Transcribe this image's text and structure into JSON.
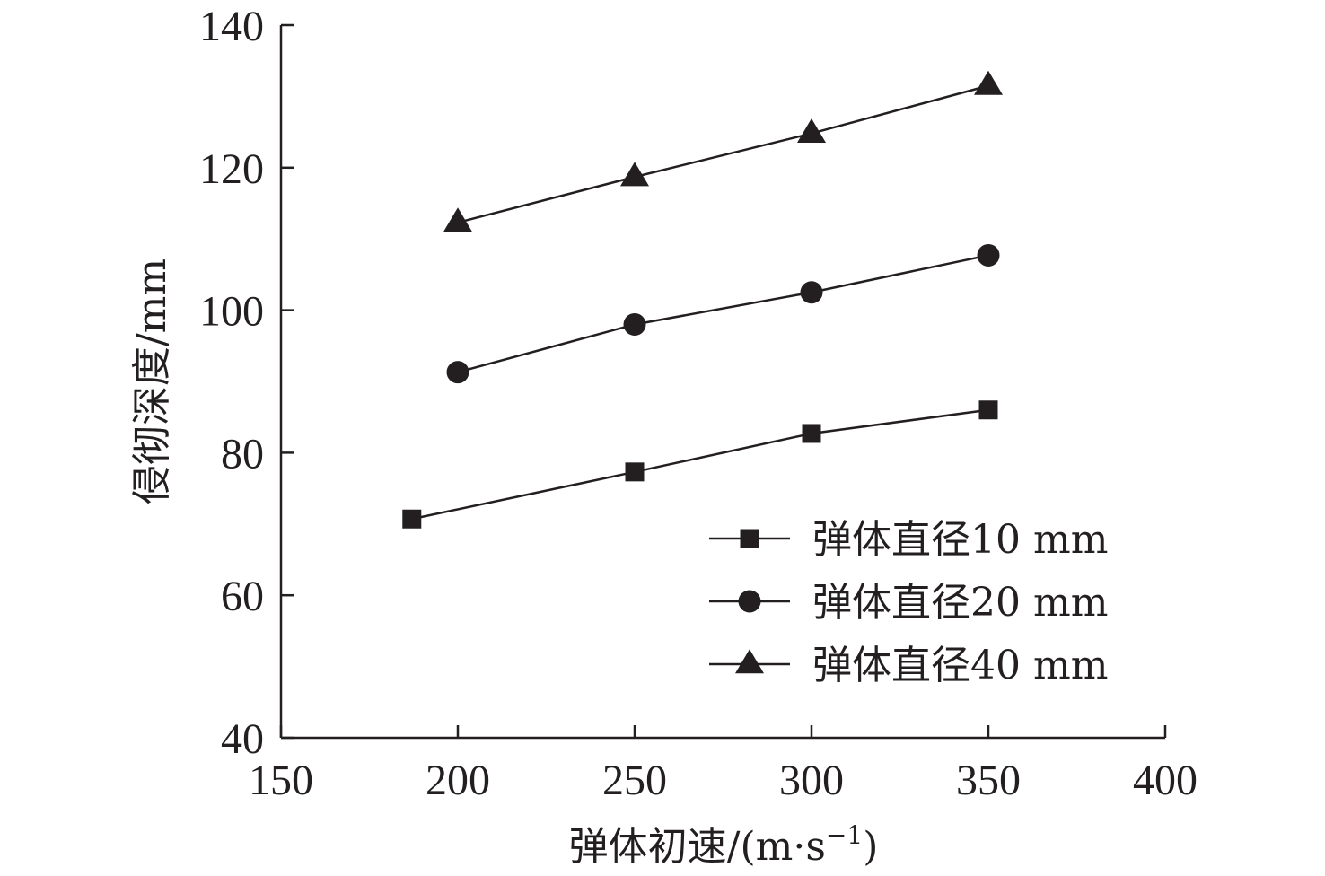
{
  "chart_data": {
    "type": "line",
    "title": "",
    "xlabel": "弹体初速/(m·s",
    "xlabel_sup": "−1",
    "xlabel_close": ")",
    "ylabel": "侵彻深度/mm",
    "xlim": [
      150,
      400
    ],
    "ylim": [
      40,
      140
    ],
    "x_ticks": [
      150,
      200,
      250,
      300,
      350,
      400
    ],
    "y_ticks": [
      40,
      60,
      80,
      100,
      120,
      140
    ],
    "grid": false,
    "legend_position": "bottom-right",
    "colors": {
      "line": "#231f20",
      "marker": "#231f20",
      "axis": "#231f20"
    },
    "series": [
      {
        "name": "弹体直径10 mm",
        "marker": "square",
        "x": [
          187,
          250,
          300,
          350
        ],
        "values": [
          70.7,
          77.3,
          82.7,
          86.0
        ]
      },
      {
        "name": "弹体直径20 mm",
        "marker": "circle",
        "x": [
          200,
          250,
          300,
          350
        ],
        "values": [
          91.3,
          98.0,
          102.5,
          107.7
        ]
      },
      {
        "name": "弹体直径40 mm",
        "marker": "triangle",
        "x": [
          200,
          250,
          300,
          350
        ],
        "values": [
          112.3,
          118.7,
          124.8,
          131.5
        ]
      }
    ]
  }
}
